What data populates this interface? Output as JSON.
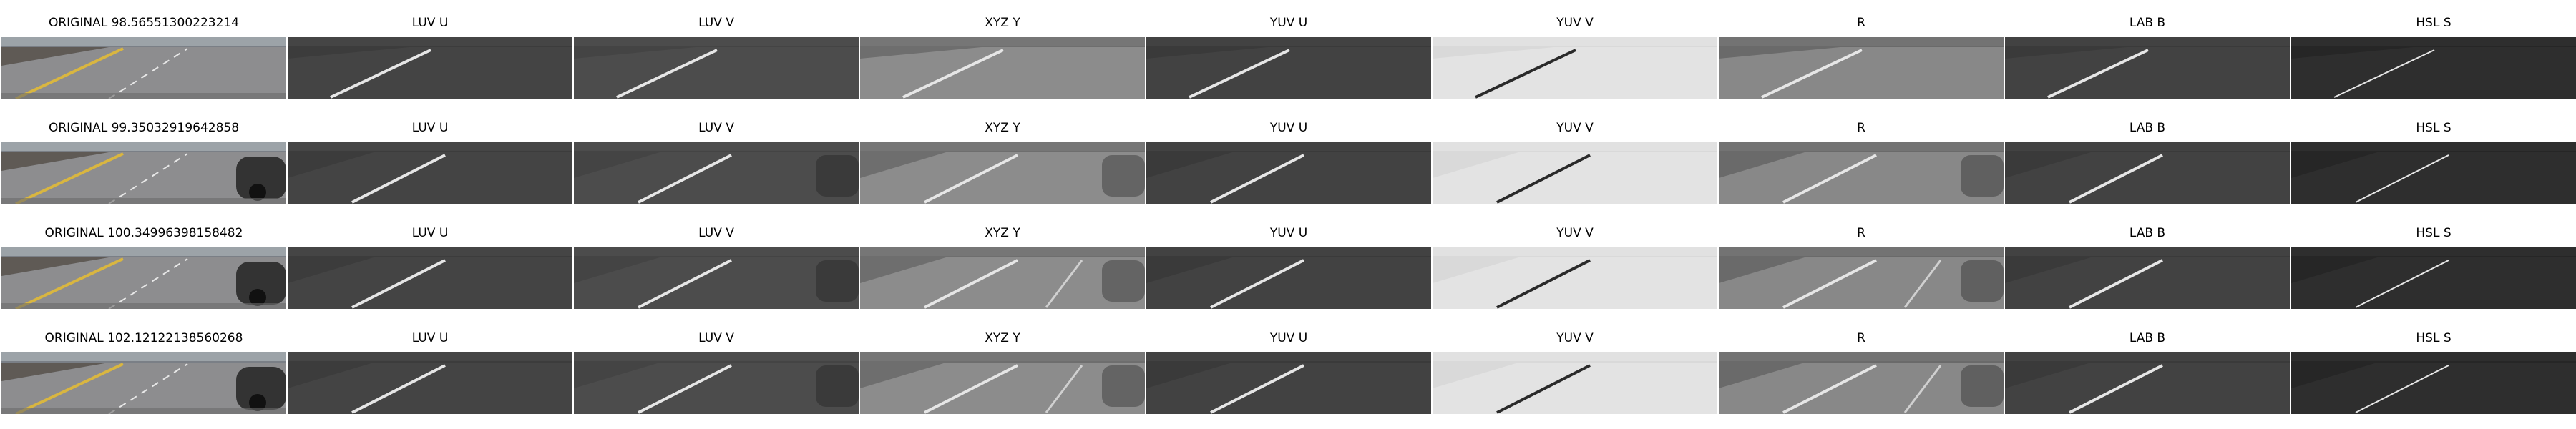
{
  "rows": [
    {
      "original_label": "ORIGINAL 98.56551300223214",
      "channels": [
        "LUV U",
        "LUV V",
        "XYZ Y",
        "YUV U",
        "YUV V",
        "R",
        "LAB B",
        "HSL S"
      ]
    },
    {
      "original_label": "ORIGINAL 99.35032919642858",
      "channels": [
        "LUV U",
        "LUV V",
        "XYZ Y",
        "YUV U",
        "YUV V",
        "R",
        "LAB B",
        "HSL S"
      ]
    },
    {
      "original_label": "ORIGINAL 100.34996398158482",
      "channels": [
        "LUV U",
        "LUV V",
        "XYZ Y",
        "YUV U",
        "YUV V",
        "R",
        "LAB B",
        "HSL S"
      ]
    },
    {
      "original_label": "ORIGINAL 102.12122138560268",
      "channels": [
        "LUV U",
        "LUV V",
        "XYZ Y",
        "YUV U",
        "YUV V",
        "R",
        "LAB B",
        "HSL S"
      ]
    }
  ],
  "palette": {
    "LUV U": "#3c3c3c",
    "LUV V": "#444444",
    "XYZ Y": "#6e6e6e",
    "YUV U": "#3a3a3a",
    "YUV V": "#d9d9d9",
    "R": "#6a6a6a",
    "LAB B": "#3a3a3a",
    "HSL S": "#262626"
  }
}
